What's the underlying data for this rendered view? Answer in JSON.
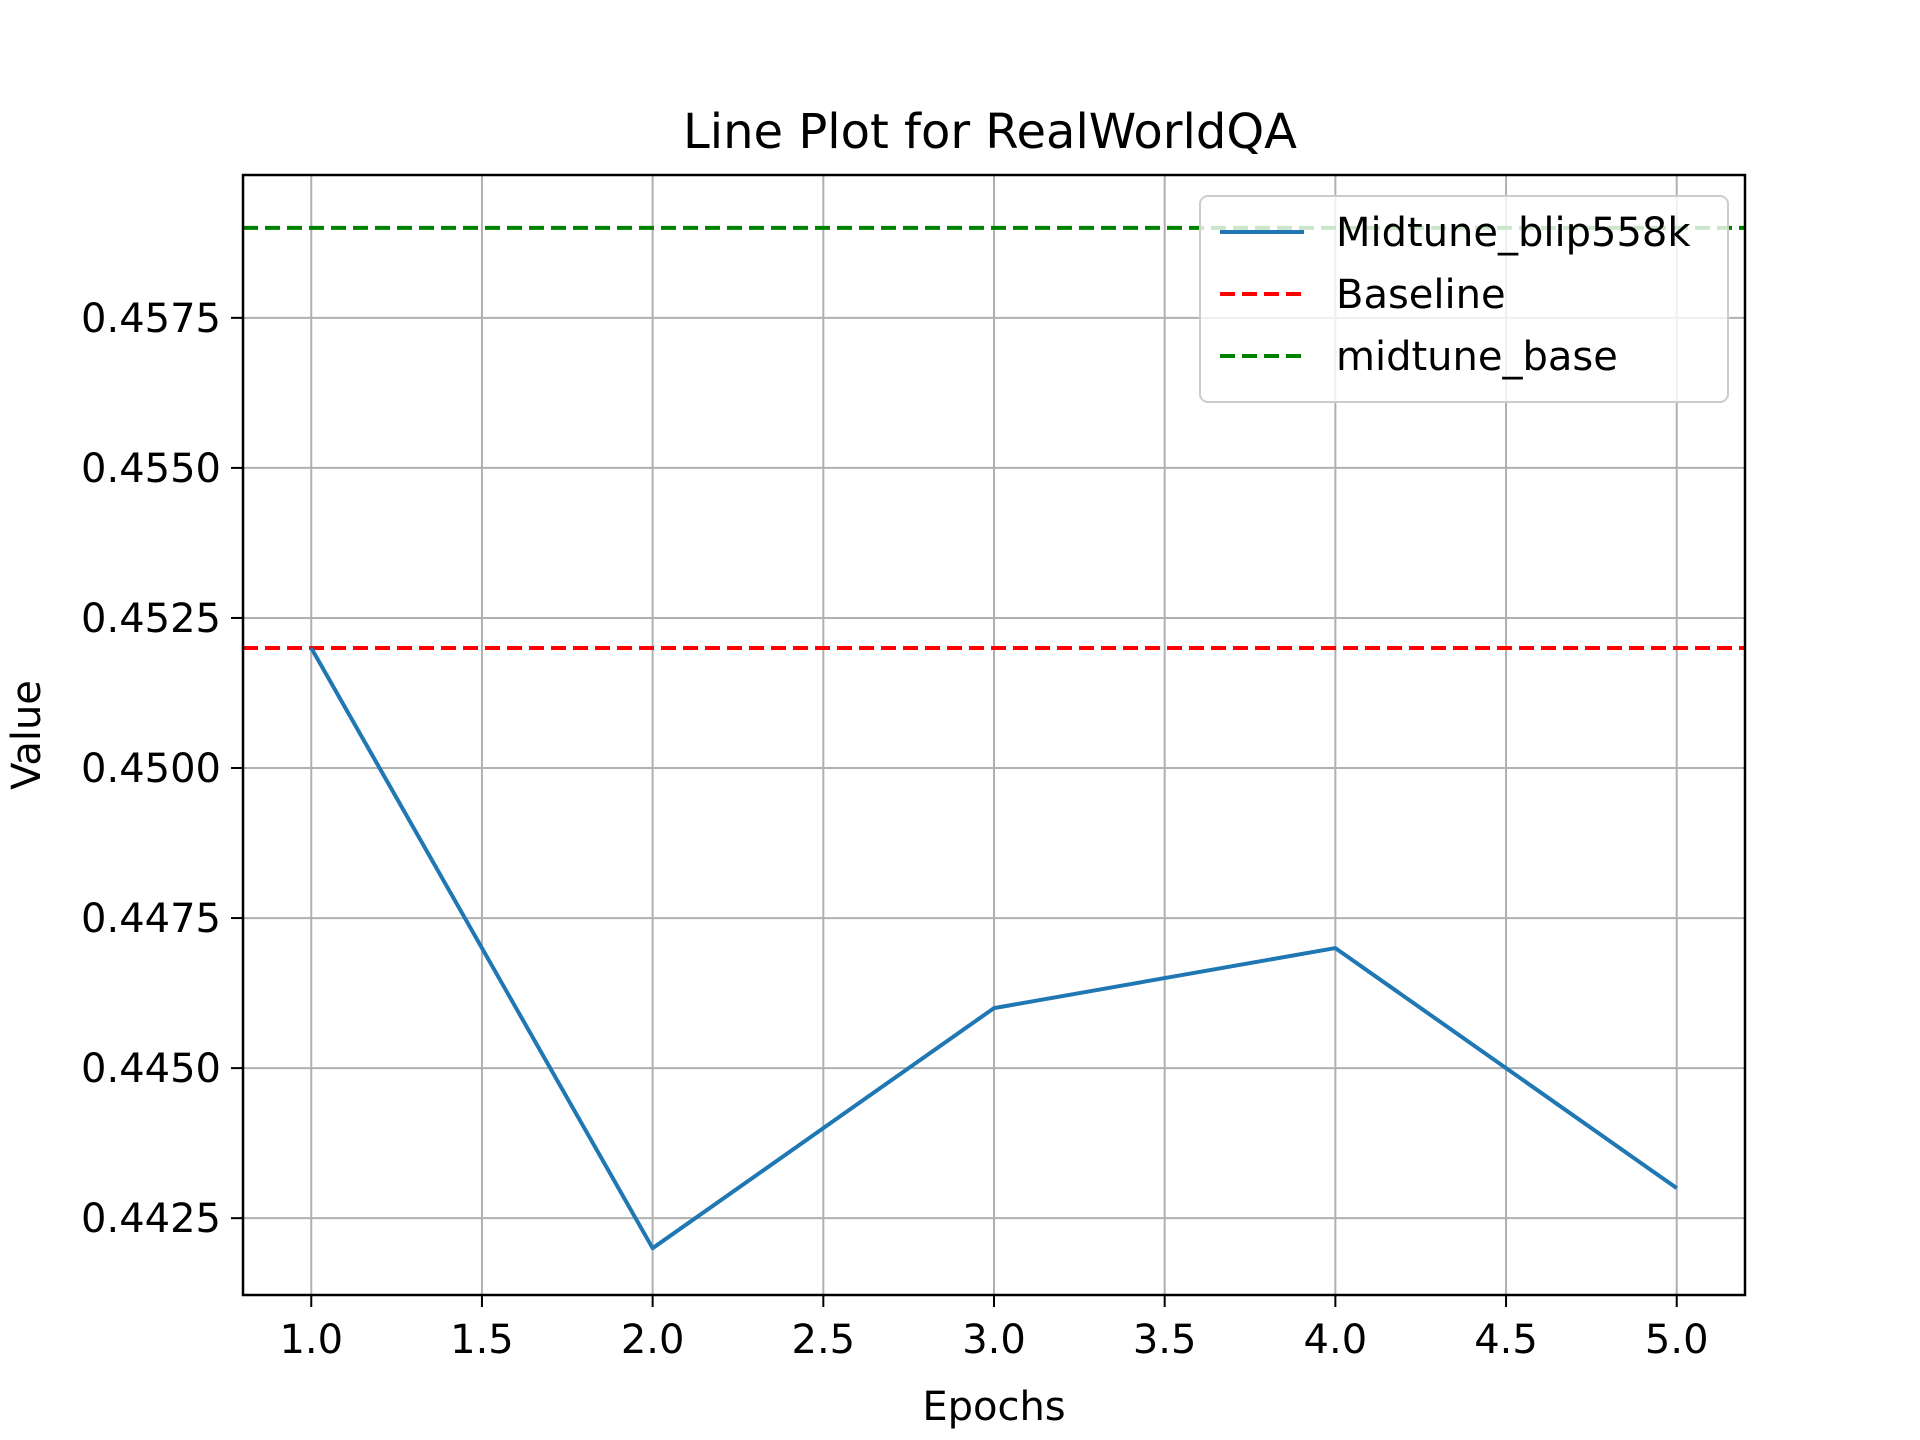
{
  "chart_data": {
    "type": "line",
    "title": "Line Plot for RealWorldQA",
    "xlabel": "Epochs",
    "ylabel": "Value",
    "xlim": [
      0.8,
      5.2
    ],
    "ylim": [
      0.44122,
      0.45988
    ],
    "xticks": [
      1.0,
      1.5,
      2.0,
      2.5,
      3.0,
      3.5,
      4.0,
      4.5,
      5.0
    ],
    "xtick_labels": [
      "1.0",
      "1.5",
      "2.0",
      "2.5",
      "3.0",
      "3.5",
      "4.0",
      "4.5",
      "5.0"
    ],
    "yticks": [
      0.4425,
      0.445,
      0.4475,
      0.45,
      0.4525,
      0.455,
      0.4575
    ],
    "ytick_labels": [
      "0.4425",
      "0.4450",
      "0.4475",
      "0.4500",
      "0.4525",
      "0.4550",
      "0.4575"
    ],
    "grid": true,
    "legend_position": "top-right",
    "series": [
      {
        "name": "Midtune_blip558k",
        "style": "solid",
        "color": "#1f77b4",
        "x": [
          1,
          2,
          3,
          4,
          5
        ],
        "y": [
          0.452,
          0.442,
          0.446,
          0.447,
          0.443
        ]
      }
    ],
    "hlines": [
      {
        "name": "Baseline",
        "style": "dashed",
        "color": "#ff0000",
        "y": 0.452
      },
      {
        "name": "midtune_base",
        "style": "dashed",
        "color": "#008000",
        "y": 0.459
      }
    ]
  }
}
